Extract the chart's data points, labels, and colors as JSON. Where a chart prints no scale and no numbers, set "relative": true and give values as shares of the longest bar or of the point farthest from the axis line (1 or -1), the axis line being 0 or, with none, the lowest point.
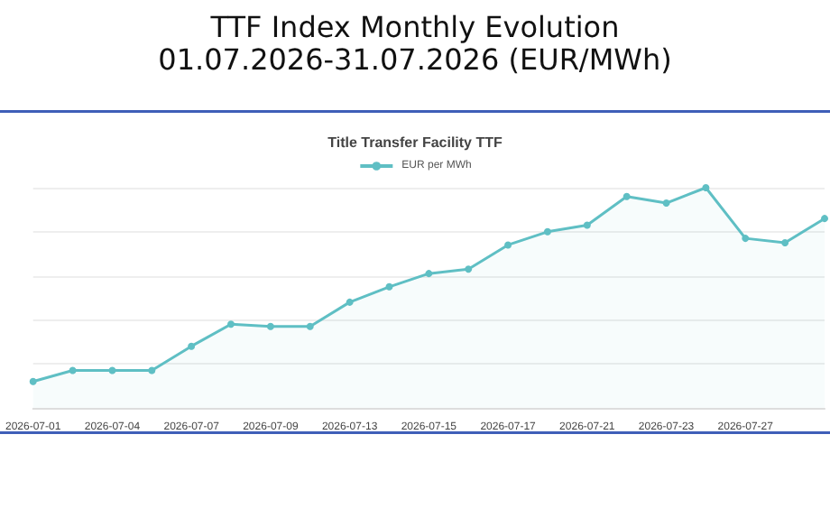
{
  "chart_data": {
    "type": "area",
    "title": "TTF Index Monthly Evolution",
    "subtitle": "01.07.2026-31.07.2026 (EUR/MWh)",
    "annotations": [
      "Title Transfer Facility TTF"
    ],
    "categories": [
      "2026-07-01",
      null,
      "2026-07-04",
      null,
      "2026-07-07",
      null,
      "2026-07-09",
      null,
      "2026-07-13",
      null,
      "2026-07-15",
      null,
      "2026-07-17",
      null,
      "2026-07-21",
      null,
      "2026-07-23",
      null,
      "2026-07-27",
      null,
      null
    ],
    "series": [
      {
        "name": "EUR per MWh",
        "color": "#5fbfc4",
        "values": [
          0.12,
          0.17,
          0.17,
          0.17,
          0.28,
          0.38,
          0.37,
          0.37,
          0.48,
          0.55,
          0.61,
          0.63,
          0.74,
          0.8,
          0.83,
          0.96,
          0.93,
          1,
          0.77,
          0.75,
          0.86
        ]
      }
    ],
    "relative": true,
    "grid": "y",
    "legend": "top",
    "marker": "circle"
  }
}
